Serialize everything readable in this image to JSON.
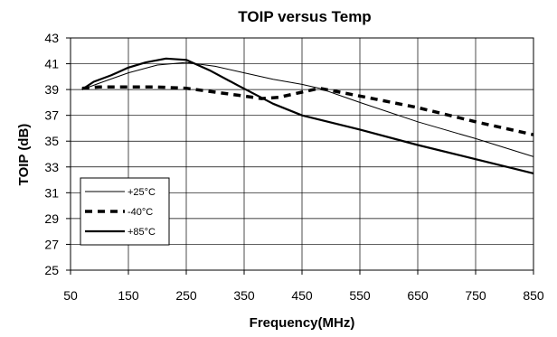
{
  "chart_data": {
    "type": "line",
    "title": "TOIP versus Temp",
    "xlabel": "Frequency(MHz)",
    "ylabel": "TOIP (dB)",
    "xlim": [
      50,
      850
    ],
    "ylim": [
      25,
      43
    ],
    "x_ticks": [
      50,
      150,
      250,
      350,
      450,
      550,
      650,
      750,
      850
    ],
    "y_ticks": [
      25,
      27,
      29,
      31,
      33,
      35,
      37,
      39,
      41,
      43
    ],
    "grid": true,
    "legend_position": "bottom-left",
    "series": [
      {
        "name": "+25°C",
        "color": "#000000",
        "style": "thin-solid",
        "points": [
          [
            70,
            39.0
          ],
          [
            100,
            39.5
          ],
          [
            150,
            40.3
          ],
          [
            200,
            40.9
          ],
          [
            250,
            41.1
          ],
          [
            300,
            40.8
          ],
          [
            350,
            40.3
          ],
          [
            400,
            39.8
          ],
          [
            450,
            39.4
          ],
          [
            480,
            39.1
          ],
          [
            550,
            38.0
          ],
          [
            650,
            36.5
          ],
          [
            750,
            35.2
          ],
          [
            850,
            33.8
          ]
        ]
      },
      {
        "name": "-40°C",
        "color": "#000000",
        "style": "dashed",
        "points": [
          [
            70,
            39.1
          ],
          [
            100,
            39.2
          ],
          [
            150,
            39.2
          ],
          [
            200,
            39.2
          ],
          [
            250,
            39.1
          ],
          [
            300,
            38.8
          ],
          [
            350,
            38.5
          ],
          [
            380,
            38.3
          ],
          [
            410,
            38.4
          ],
          [
            450,
            38.8
          ],
          [
            480,
            39.1
          ],
          [
            550,
            38.5
          ],
          [
            650,
            37.6
          ],
          [
            750,
            36.5
          ],
          [
            850,
            35.5
          ]
        ]
      },
      {
        "name": "+85°C",
        "color": "#000000",
        "style": "thick-solid",
        "points": [
          [
            70,
            39.0
          ],
          [
            90,
            39.6
          ],
          [
            120,
            40.1
          ],
          [
            150,
            40.7
          ],
          [
            180,
            41.1
          ],
          [
            215,
            41.4
          ],
          [
            250,
            41.3
          ],
          [
            290,
            40.5
          ],
          [
            340,
            39.3
          ],
          [
            400,
            37.9
          ],
          [
            450,
            37.0
          ],
          [
            550,
            35.9
          ],
          [
            650,
            34.7
          ],
          [
            750,
            33.6
          ],
          [
            850,
            32.5
          ]
        ]
      }
    ]
  }
}
